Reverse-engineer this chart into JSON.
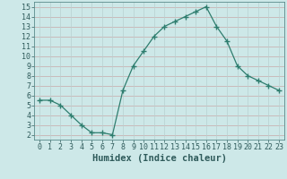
{
  "x": [
    0,
    1,
    2,
    3,
    4,
    5,
    6,
    7,
    8,
    9,
    10,
    11,
    12,
    13,
    14,
    15,
    16,
    17,
    18,
    19,
    20,
    21,
    22,
    23
  ],
  "y": [
    5.5,
    5.5,
    5.0,
    4.0,
    3.0,
    2.2,
    2.2,
    2.0,
    6.5,
    9.0,
    10.5,
    12.0,
    13.0,
    13.5,
    14.0,
    14.5,
    15.0,
    13.0,
    11.5,
    9.0,
    8.0,
    7.5,
    7.0,
    6.5
  ],
  "line_color": "#2e7d6e",
  "marker": "+",
  "marker_size": 4,
  "bg_color": "#cde8e8",
  "grid_color_h": "#c8a8a8",
  "grid_color_v": "#b8d0d0",
  "xlabel": "Humidex (Indice chaleur)",
  "xlim_min": -0.5,
  "xlim_max": 23.5,
  "ylim_min": 1.5,
  "ylim_max": 15.5,
  "yticks": [
    2,
    3,
    4,
    5,
    6,
    7,
    8,
    9,
    10,
    11,
    12,
    13,
    14,
    15
  ],
  "xticks": [
    0,
    1,
    2,
    3,
    4,
    5,
    6,
    7,
    8,
    9,
    10,
    11,
    12,
    13,
    14,
    15,
    16,
    17,
    18,
    19,
    20,
    21,
    22,
    23
  ],
  "xlabel_fontsize": 7.5,
  "tick_fontsize": 6.0,
  "tick_color": "#2e5a5a",
  "label_color": "#2e5a5a"
}
